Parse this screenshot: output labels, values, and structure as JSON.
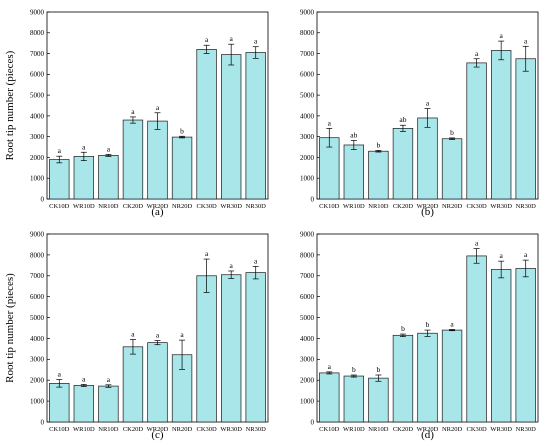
{
  "colors": {
    "bar_fill": "#a8e6ea",
    "bar_stroke": "#1a1a1a",
    "axis": "#000000"
  },
  "ylabel": "Root tip number (pieces)",
  "chart_data": [
    {
      "type": "bar",
      "panel_label": "(a)",
      "categories": [
        "CK10D",
        "WR10D",
        "NR10D",
        "CK20D",
        "WR20D",
        "NR20D",
        "CK30D",
        "WR30D",
        "NR30D"
      ],
      "values": [
        1900,
        2050,
        2100,
        3800,
        3750,
        2980,
        7200,
        6950,
        7050
      ],
      "errors": [
        160,
        200,
        50,
        150,
        400,
        40,
        200,
        500,
        280
      ],
      "significance": [
        "a",
        "a",
        "a",
        "a",
        "a",
        "b",
        "a",
        "a",
        "a"
      ],
      "ylim": [
        0,
        9000
      ],
      "yticks": [
        0,
        1000,
        2000,
        3000,
        4000,
        5000,
        6000,
        7000,
        8000,
        9000
      ],
      "ylabel": "Root tip number (pieces)",
      "xlabel": ""
    },
    {
      "type": "bar",
      "panel_label": "(b)",
      "categories": [
        "CK10D",
        "WR10D",
        "NR10D",
        "CK20D",
        "WR20D",
        "NR20D",
        "CK30D",
        "WR30D",
        "NR30D"
      ],
      "values": [
        2950,
        2600,
        2300,
        3400,
        3900,
        2900,
        6550,
        7150,
        6750
      ],
      "errors": [
        450,
        220,
        40,
        150,
        450,
        40,
        200,
        450,
        600
      ],
      "significance": [
        "a",
        "ab",
        "b",
        "ab",
        "a",
        "b",
        "a",
        "a",
        "a"
      ],
      "ylim": [
        0,
        9000
      ],
      "yticks": [
        0,
        1000,
        2000,
        3000,
        4000,
        5000,
        6000,
        7000,
        8000,
        9000
      ],
      "ylabel": "",
      "xlabel": ""
    },
    {
      "type": "bar",
      "panel_label": "(c)",
      "categories": [
        "CK10D",
        "WR10D",
        "NR10D",
        "CK20D",
        "WR20D",
        "NR20D",
        "CK30D",
        "WR30D",
        "NR30D"
      ],
      "values": [
        1850,
        1750,
        1720,
        3600,
        3800,
        3220,
        7000,
        7050,
        7150
      ],
      "errors": [
        180,
        50,
        60,
        350,
        100,
        700,
        800,
        180,
        300
      ],
      "significance": [
        "a",
        "a",
        "a",
        "a",
        "a",
        "a",
        "a",
        "a",
        "a"
      ],
      "ylim": [
        0,
        9000
      ],
      "yticks": [
        0,
        1000,
        2000,
        3000,
        4000,
        5000,
        6000,
        7000,
        8000,
        9000
      ],
      "ylabel": "Root tip number (pieces)",
      "xlabel": ""
    },
    {
      "type": "bar",
      "panel_label": "(d)",
      "categories": [
        "CK10D",
        "WR10D",
        "NR10D",
        "CK20D",
        "WR20D",
        "NR20D",
        "CK30D",
        "WR30D",
        "NR30D"
      ],
      "values": [
        2350,
        2200,
        2100,
        4150,
        4250,
        4400,
        7950,
        7300,
        7350
      ],
      "errors": [
        50,
        50,
        150,
        60,
        150,
        30,
        350,
        400,
        400
      ],
      "significance": [
        "a",
        "b",
        "b",
        "b",
        "b",
        "a",
        "a",
        "a",
        "a"
      ],
      "ylim": [
        0,
        9000
      ],
      "yticks": [
        0,
        1000,
        2000,
        3000,
        4000,
        5000,
        6000,
        7000,
        8000,
        9000
      ],
      "ylabel": "",
      "xlabel": ""
    }
  ]
}
